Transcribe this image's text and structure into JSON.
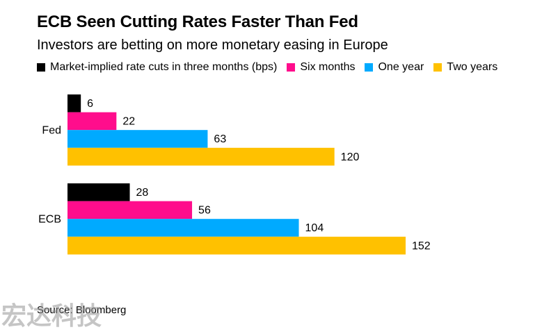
{
  "header": {
    "title": "ECB Seen Cutting Rates Faster Than Fed",
    "subtitle": "Investors are betting on more monetary easing in Europe"
  },
  "footer": {
    "source": "Source: Bloomberg",
    "watermark": "宏达科技"
  },
  "chart_data": {
    "type": "bar",
    "orientation": "horizontal",
    "title": "ECB Seen Cutting Rates Faster Than Fed",
    "subtitle": "Investors are betting on more monetary easing in Europe",
    "categories": [
      "Fed",
      "ECB"
    ],
    "series": [
      {
        "name": "Market-implied rate cuts in three months (bps)",
        "color": "#000000",
        "values": [
          6,
          28
        ]
      },
      {
        "name": "Six months",
        "color": "#ff0d8c",
        "values": [
          22,
          56
        ]
      },
      {
        "name": "One year",
        "color": "#00aaff",
        "values": [
          63,
          104
        ]
      },
      {
        "name": "Two years",
        "color": "#ffc100",
        "values": [
          120,
          152
        ]
      }
    ],
    "xlim": [
      0,
      152
    ],
    "data_labels": true,
    "grid": false,
    "legend_position": "top"
  }
}
